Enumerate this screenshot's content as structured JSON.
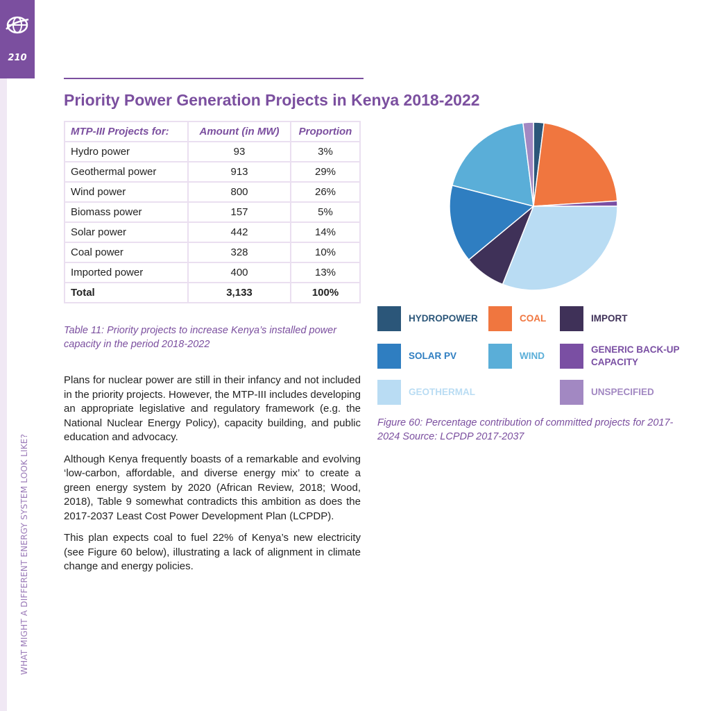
{
  "sidebar": {
    "page_number": "210",
    "running_title": "WHAT MIGHT A DIFFERENT ENERGY SYSTEM LOOK LIKE?",
    "logo_icon": "globe-icon"
  },
  "title": "Priority Power Generation Projects in Kenya 2018-2022",
  "table": {
    "headers": [
      "MTP-III Projects for:",
      "Amount (in MW)",
      "Proportion"
    ],
    "rows": [
      [
        "Hydro power",
        "93",
        "3%"
      ],
      [
        "Geothermal power",
        "913",
        "29%"
      ],
      [
        "Wind power",
        "800",
        "26%"
      ],
      [
        "Biomass power",
        "157",
        "5%"
      ],
      [
        "Solar power",
        "442",
        "14%"
      ],
      [
        "Coal power",
        "328",
        "10%"
      ],
      [
        "Imported power",
        "400",
        "13%"
      ]
    ],
    "total": [
      "Total",
      "3,133",
      "100%"
    ],
    "caption": "Table 11: Priority projects to increase Kenya’s installed power capacity in the period 2018-2022"
  },
  "body": {
    "paragraphs": [
      "Plans for nuclear power are still in their infancy and not included in the priority projects. However, the MTP-III includes developing an appropriate legislative and regulatory framework (e.g. the National Nuclear Energy Policy), capacity building, and public education and advocacy.",
      "Although Kenya frequently boasts of a remarkable and evolving ‘low-carbon, affordable, and diverse energy mix’ to create a green energy system by 2020 (African Review, 2018; Wood, 2018), Table 9 somewhat contradicts this ambition as does the 2017-2037 Least Cost Power Development Plan (LCPDP).",
      "This plan expects coal to fuel 22% of Kenya’s new electricity (see Figure 60 below), illustrating a lack of alignment in climate change and energy policies."
    ]
  },
  "figure": {
    "caption": "Figure 60: Percentage contribution of committed projects for 2017-2024 Source: LCPDP 2017-2037"
  },
  "chart_data": {
    "type": "pie",
    "title": "",
    "slices": [
      {
        "label": "HYDROPOWER",
        "value": 2,
        "color": "#2b5679",
        "text_color": "#2b5679"
      },
      {
        "label": "COAL",
        "value": 22,
        "color": "#f0763f",
        "text_color": "#f0763f"
      },
      {
        "label": "GENERIC BACK-UP CAPACITY",
        "value": 1,
        "color": "#7a4fa3",
        "text_color": "#7a4fa3"
      },
      {
        "label": "GEOTHERMAL",
        "value": 31,
        "color": "#b9dcf3",
        "text_color": "#b9dcf3"
      },
      {
        "label": "IMPORT",
        "value": 8,
        "color": "#3f3158",
        "text_color": "#3f3158"
      },
      {
        "label": "SOLAR PV",
        "value": 15,
        "color": "#2f7ec1",
        "text_color": "#2f7ec1"
      },
      {
        "label": "WIND",
        "value": 19,
        "color": "#5aaed8",
        "text_color": "#5aaed8"
      },
      {
        "label": "UNSPECIFIED",
        "value": 2,
        "color": "#a288c2",
        "text_color": "#a288c2"
      }
    ],
    "legend": [
      {
        "label": "HYDROPOWER",
        "color": "#2b5679",
        "text_color": "#2b5679"
      },
      {
        "label": "COAL",
        "color": "#f0763f",
        "text_color": "#f0763f"
      },
      {
        "label": "IMPORT",
        "color": "#3f3158",
        "text_color": "#3f3158"
      },
      {
        "label": "SOLAR PV",
        "color": "#2f7ec1",
        "text_color": "#2f7ec1"
      },
      {
        "label": "WIND",
        "color": "#5aaed8",
        "text_color": "#5aaed8"
      },
      {
        "label": "GENERIC BACK-UP CAPACITY",
        "color": "#7a4fa3",
        "text_color": "#7a4fa3"
      },
      {
        "label": "GEOTHERMAL",
        "color": "#b9dcf3",
        "text_color": "#b9dcf3"
      },
      {
        "label": "UNSPECIFIED",
        "color": "#a288c2",
        "text_color": "#a288c2"
      }
    ]
  }
}
